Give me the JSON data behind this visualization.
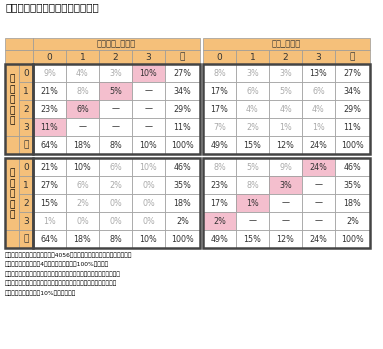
{
  "title": "図表８　誤答数と不明数との関係",
  "note1_line1": "（注１）　表中の割合は全体（4056人）に対する該当者の割合。太枠で囲",
  "note1_line2": "　　　　まれた部分（4箇所）ごとに合計が100%になる。",
  "note2_line1": "（注２）　背景がピンクの箇所は、生命保険に関する設問と金融に関す",
  "note2_line2": "　　　　る設問のそれぞれで、正答数がゼロになる箇所。文字が灰色",
  "note2_line3": "　　　　の箇所は値が10%未満の箇所。",
  "orange": "#F5C07A",
  "pink": "#F4BFCE",
  "white": "#FFFFFF",
  "gray_text": "#AAAAAA",
  "black_text": "#333333",
  "border_thin": "#999999",
  "border_thick": "#555555",
  "seimei_header": "生命保険_不明数",
  "kinyu_header": "金融_不明数",
  "sub_cols": [
    "0",
    "1",
    "2",
    "3",
    "計"
  ],
  "row_labels_g1": [
    "生",
    "保",
    "誤",
    "答",
    "数"
  ],
  "row_labels_g2": [
    "金",
    "融",
    "誤",
    "答",
    "数"
  ],
  "row_sub": [
    "0",
    "1",
    "2",
    "3",
    "計"
  ],
  "seimei_data": [
    {
      "vals": [
        "9%",
        "4%",
        "3%",
        "10%",
        "27%"
      ],
      "bg": [
        "w",
        "w",
        "w",
        "p",
        "w"
      ],
      "fc": [
        "g",
        "g",
        "g",
        "b",
        "b"
      ]
    },
    {
      "vals": [
        "21%",
        "8%",
        "5%",
        "—",
        "34%"
      ],
      "bg": [
        "w",
        "w",
        "p",
        "w",
        "w"
      ],
      "fc": [
        "b",
        "g",
        "b",
        "b",
        "b"
      ]
    },
    {
      "vals": [
        "23%",
        "6%",
        "—",
        "—",
        "29%"
      ],
      "bg": [
        "w",
        "p",
        "w",
        "w",
        "w"
      ],
      "fc": [
        "b",
        "b",
        "b",
        "b",
        "b"
      ]
    },
    {
      "vals": [
        "11%",
        "—",
        "—",
        "—",
        "11%"
      ],
      "bg": [
        "p",
        "w",
        "w",
        "w",
        "w"
      ],
      "fc": [
        "b",
        "b",
        "b",
        "b",
        "b"
      ]
    },
    {
      "vals": [
        "64%",
        "18%",
        "8%",
        "10%",
        "100%"
      ],
      "bg": [
        "w",
        "w",
        "w",
        "w",
        "w"
      ],
      "fc": [
        "b",
        "b",
        "b",
        "b",
        "b"
      ]
    }
  ],
  "ks_data": [
    {
      "vals": [
        "8%",
        "3%",
        "3%",
        "13%",
        "27%"
      ],
      "bg": [
        "w",
        "w",
        "w",
        "w",
        "w"
      ],
      "fc": [
        "g",
        "g",
        "g",
        "b",
        "b"
      ]
    },
    {
      "vals": [
        "17%",
        "6%",
        "5%",
        "6%",
        "34%"
      ],
      "bg": [
        "w",
        "w",
        "w",
        "w",
        "w"
      ],
      "fc": [
        "b",
        "g",
        "g",
        "g",
        "b"
      ]
    },
    {
      "vals": [
        "17%",
        "4%",
        "4%",
        "4%",
        "29%"
      ],
      "bg": [
        "w",
        "w",
        "w",
        "w",
        "w"
      ],
      "fc": [
        "b",
        "g",
        "g",
        "g",
        "b"
      ]
    },
    {
      "vals": [
        "7%",
        "2%",
        "1%",
        "1%",
        "11%"
      ],
      "bg": [
        "w",
        "w",
        "w",
        "w",
        "w"
      ],
      "fc": [
        "g",
        "g",
        "g",
        "g",
        "b"
      ]
    },
    {
      "vals": [
        "49%",
        "15%",
        "12%",
        "24%",
        "100%"
      ],
      "bg": [
        "w",
        "w",
        "w",
        "w",
        "w"
      ],
      "fc": [
        "b",
        "b",
        "b",
        "b",
        "b"
      ]
    }
  ],
  "kinyu_data": [
    {
      "vals": [
        "21%",
        "10%",
        "6%",
        "10%",
        "46%"
      ],
      "bg": [
        "w",
        "w",
        "w",
        "w",
        "w"
      ],
      "fc": [
        "b",
        "b",
        "g",
        "g",
        "b"
      ]
    },
    {
      "vals": [
        "27%",
        "6%",
        "2%",
        "0%",
        "35%"
      ],
      "bg": [
        "w",
        "w",
        "w",
        "w",
        "w"
      ],
      "fc": [
        "b",
        "g",
        "g",
        "g",
        "b"
      ]
    },
    {
      "vals": [
        "15%",
        "2%",
        "0%",
        "0%",
        "18%"
      ],
      "bg": [
        "w",
        "w",
        "w",
        "w",
        "w"
      ],
      "fc": [
        "b",
        "g",
        "g",
        "g",
        "b"
      ]
    },
    {
      "vals": [
        "1%",
        "0%",
        "0%",
        "0%",
        "2%"
      ],
      "bg": [
        "w",
        "w",
        "w",
        "w",
        "w"
      ],
      "fc": [
        "g",
        "g",
        "g",
        "g",
        "b"
      ]
    },
    {
      "vals": [
        "64%",
        "18%",
        "8%",
        "10%",
        "100%"
      ],
      "bg": [
        "w",
        "w",
        "w",
        "w",
        "w"
      ],
      "fc": [
        "b",
        "b",
        "b",
        "b",
        "b"
      ]
    }
  ],
  "kk_data": [
    {
      "vals": [
        "8%",
        "5%",
        "9%",
        "24%",
        "46%"
      ],
      "bg": [
        "w",
        "w",
        "w",
        "p",
        "w"
      ],
      "fc": [
        "g",
        "g",
        "g",
        "b",
        "b"
      ]
    },
    {
      "vals": [
        "23%",
        "8%",
        "3%",
        "—",
        "35%"
      ],
      "bg": [
        "w",
        "w",
        "p",
        "w",
        "w"
      ],
      "fc": [
        "b",
        "g",
        "b",
        "b",
        "b"
      ]
    },
    {
      "vals": [
        "17%",
        "1%",
        "—",
        "—",
        "18%"
      ],
      "bg": [
        "w",
        "p",
        "w",
        "w",
        "w"
      ],
      "fc": [
        "b",
        "b",
        "b",
        "b",
        "b"
      ]
    },
    {
      "vals": [
        "2%",
        "—",
        "—",
        "—",
        "2%"
      ],
      "bg": [
        "p",
        "w",
        "w",
        "w",
        "w"
      ],
      "fc": [
        "b",
        "b",
        "b",
        "b",
        "b"
      ]
    },
    {
      "vals": [
        "49%",
        "15%",
        "12%",
        "24%",
        "100%"
      ],
      "bg": [
        "w",
        "w",
        "w",
        "w",
        "w"
      ],
      "fc": [
        "b",
        "b",
        "b",
        "b",
        "b"
      ]
    }
  ]
}
